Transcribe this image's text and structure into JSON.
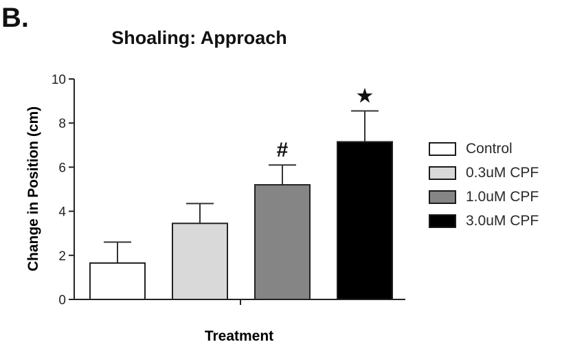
{
  "panel_label": "B.",
  "chart_data": {
    "type": "bar",
    "title": "Shoaling: Approach",
    "xlabel": "Treatment",
    "ylabel": "Change in Position (cm)",
    "ylim": [
      0,
      10
    ],
    "yticks": [
      0,
      2,
      4,
      6,
      8,
      10
    ],
    "grid": false,
    "legend_position": "right",
    "series": [
      {
        "name": "Control",
        "value": 1.65,
        "error": 0.95,
        "color": "#ffffff",
        "annotation": ""
      },
      {
        "name": "0.3uM CPF",
        "value": 3.45,
        "error": 0.9,
        "color": "#d9d9d9",
        "annotation": ""
      },
      {
        "name": "1.0uM CPF",
        "value": 5.2,
        "error": 0.9,
        "color": "#858585",
        "annotation": "#"
      },
      {
        "name": "3.0uM CPF",
        "value": 7.15,
        "error": 1.4,
        "color": "#000000",
        "annotation": "★"
      }
    ]
  }
}
